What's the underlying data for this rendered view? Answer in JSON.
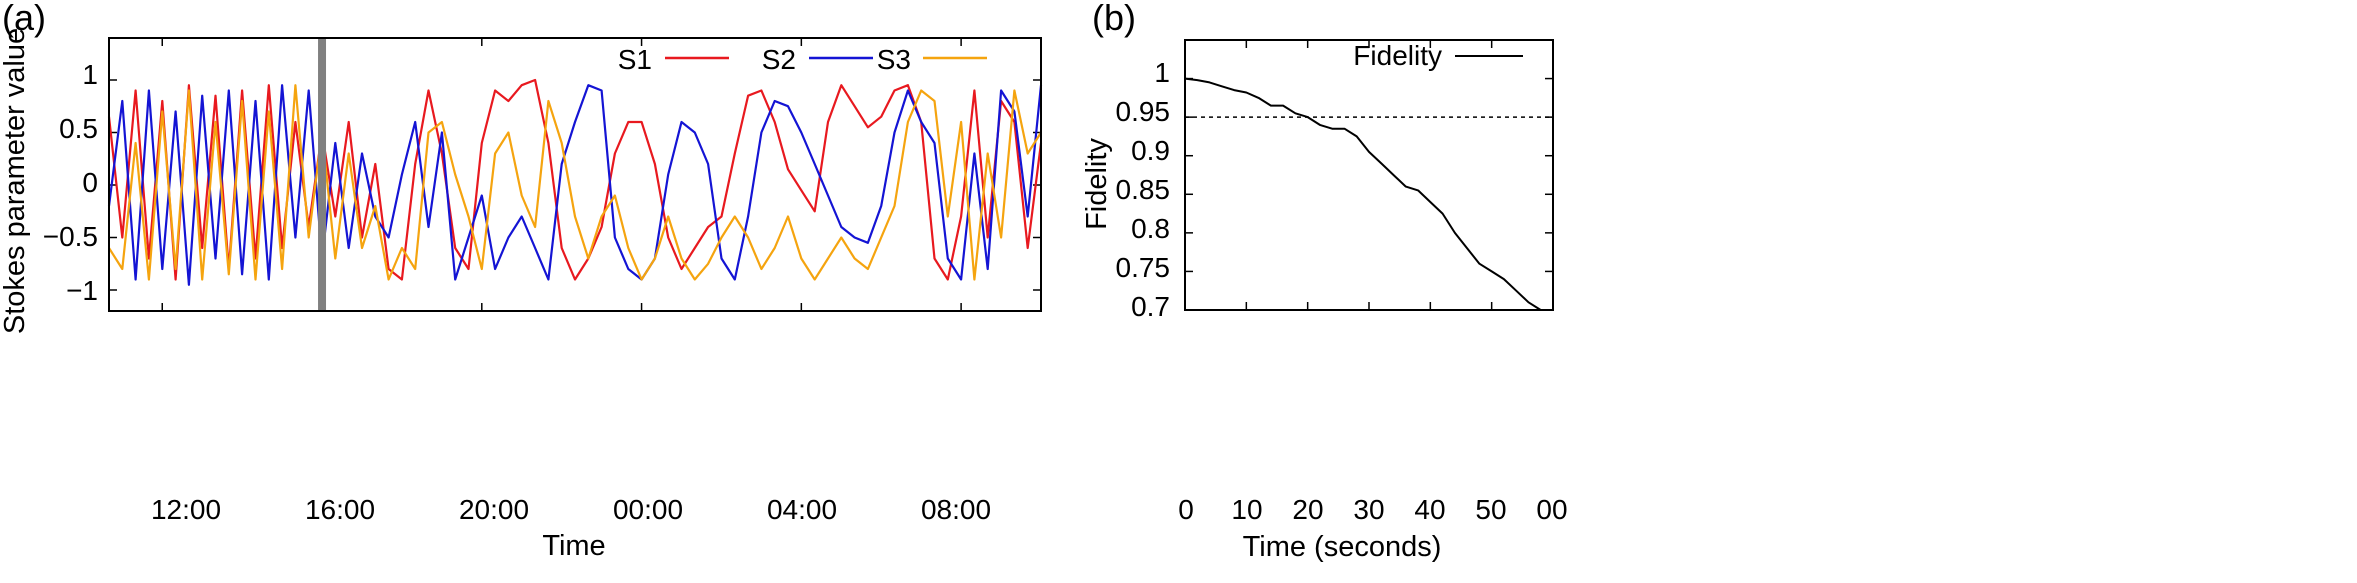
{
  "chart_data": [
    {
      "panel_label": "(a)",
      "type": "line",
      "title": "",
      "xlabel": "Time",
      "ylabel": "Stokes parameter value",
      "xlim": [
        "10:40",
        "10:00 (+1 day)"
      ],
      "ylim": [
        -1.2,
        1.4
      ],
      "x_ticks": [
        "12:00",
        "16:00",
        "20:00",
        "00:00",
        "04:00",
        "08:00"
      ],
      "y_ticks": [
        "1",
        "0.5",
        "0",
        "−0.5",
        "−1"
      ],
      "y_tick_values": [
        1,
        0.5,
        0,
        -0.5,
        -1
      ],
      "grid": false,
      "legend_position": "top-right",
      "marker_line": {
        "x": "16:00",
        "color": "#808080"
      },
      "sample_times": [
        "10:40",
        "11:00",
        "11:20",
        "11:40",
        "12:00",
        "12:20",
        "12:40",
        "13:00",
        "13:20",
        "13:40",
        "14:00",
        "14:20",
        "14:40",
        "15:00",
        "15:20",
        "15:40",
        "16:00",
        "16:20",
        "16:40",
        "17:00",
        "17:20",
        "17:40",
        "18:00",
        "18:20",
        "18:40",
        "19:00",
        "19:20",
        "19:40",
        "20:00",
        "20:20",
        "20:40",
        "21:00",
        "21:20",
        "21:40",
        "22:00",
        "22:20",
        "22:40",
        "23:00",
        "23:20",
        "23:40",
        "00:00",
        "00:20",
        "00:40",
        "01:00",
        "01:20",
        "01:40",
        "02:00",
        "02:20",
        "02:40",
        "03:00",
        "03:20",
        "03:40",
        "04:00",
        "04:20",
        "04:40",
        "05:00",
        "05:20",
        "05:40",
        "06:00",
        "06:20",
        "06:40",
        "07:00",
        "07:20",
        "07:40",
        "08:00",
        "08:20",
        "08:40",
        "09:00",
        "09:20",
        "09:40",
        "10:00"
      ],
      "series": [
        {
          "name": "S1",
          "color": "#e8191f",
          "values": [
            0.65,
            -0.5,
            0.9,
            -0.7,
            0.8,
            -0.9,
            0.95,
            -0.6,
            0.85,
            -0.8,
            0.9,
            -0.7,
            0.95,
            -0.6,
            0.6,
            -0.4,
            0.5,
            -0.3,
            0.6,
            -0.5,
            0.2,
            -0.8,
            -0.9,
            0.2,
            0.9,
            0.3,
            -0.6,
            -0.8,
            0.4,
            0.9,
            0.8,
            0.95,
            1.0,
            0.4,
            -0.6,
            -0.9,
            -0.7,
            -0.4,
            0.3,
            0.6,
            0.6,
            0.2,
            -0.5,
            -0.8,
            -0.6,
            -0.4,
            -0.3,
            0.3,
            0.85,
            0.9,
            0.6,
            0.15,
            -0.05,
            -0.25,
            0.6,
            0.95,
            0.75,
            0.55,
            0.65,
            0.9,
            0.95,
            0.6,
            -0.7,
            -0.9,
            -0.3,
            0.9,
            -0.5,
            0.8,
            0.6,
            -0.6,
            0.4
          ]
        },
        {
          "name": "S2",
          "color": "#1414d4",
          "values": [
            -0.2,
            0.8,
            -0.9,
            0.9,
            -0.8,
            0.7,
            -0.95,
            0.85,
            -0.7,
            0.9,
            -0.85,
            0.8,
            -0.9,
            0.95,
            -0.5,
            0.9,
            -0.7,
            0.4,
            -0.6,
            0.3,
            -0.3,
            -0.5,
            0.1,
            0.6,
            -0.4,
            0.5,
            -0.9,
            -0.5,
            -0.1,
            -0.8,
            -0.5,
            -0.3,
            -0.6,
            -0.9,
            0.2,
            0.6,
            0.95,
            0.9,
            -0.5,
            -0.8,
            -0.9,
            -0.7,
            0.1,
            0.6,
            0.5,
            0.2,
            -0.7,
            -0.9,
            -0.3,
            0.5,
            0.8,
            0.75,
            0.5,
            0.2,
            -0.1,
            -0.4,
            -0.5,
            -0.55,
            -0.2,
            0.5,
            0.9,
            0.6,
            0.4,
            -0.7,
            -0.9,
            0.3,
            -0.8,
            0.9,
            0.7,
            -0.3,
            0.95
          ]
        },
        {
          "name": "S3",
          "color": "#f5a40f",
          "values": [
            -0.6,
            -0.8,
            0.4,
            -0.9,
            0.7,
            -0.8,
            0.9,
            -0.9,
            0.6,
            -0.85,
            0.8,
            -0.9,
            0.7,
            -0.8,
            0.95,
            -0.5,
            0.5,
            -0.7,
            0.3,
            -0.6,
            -0.2,
            -0.9,
            -0.6,
            -0.8,
            0.5,
            0.6,
            0.1,
            -0.3,
            -0.8,
            0.3,
            0.5,
            -0.1,
            -0.4,
            0.8,
            0.4,
            -0.3,
            -0.7,
            -0.3,
            -0.1,
            -0.6,
            -0.9,
            -0.7,
            -0.3,
            -0.7,
            -0.9,
            -0.75,
            -0.5,
            -0.3,
            -0.5,
            -0.8,
            -0.6,
            -0.3,
            -0.7,
            -0.9,
            -0.7,
            -0.5,
            -0.7,
            -0.8,
            -0.5,
            -0.2,
            0.6,
            0.9,
            0.8,
            -0.3,
            0.6,
            -0.9,
            0.3,
            -0.5,
            0.9,
            0.3,
            0.5
          ]
        }
      ]
    },
    {
      "panel_label": "(b)",
      "type": "line",
      "title": "",
      "xlabel": "Time (seconds)",
      "ylabel": "Fidelity",
      "xlim": [
        0,
        60
      ],
      "ylim": [
        0.7,
        1.05
      ],
      "x_ticks": [
        "0",
        "10",
        "20",
        "30",
        "40",
        "50",
        "00"
      ],
      "x_tick_values": [
        0,
        10,
        20,
        30,
        40,
        50,
        60
      ],
      "y_ticks": [
        "1",
        "0.95",
        "0.9",
        "0.85",
        "0.8",
        "0.75",
        "0.7"
      ],
      "y_tick_values": [
        1,
        0.95,
        0.9,
        0.85,
        0.8,
        0.75,
        0.7
      ],
      "grid": false,
      "legend_position": "top-right",
      "threshold": 0.95,
      "series": [
        {
          "name": "Fidelity",
          "color": "#000000",
          "x": [
            0,
            2,
            4,
            6,
            8,
            10,
            12,
            14,
            16,
            18,
            20,
            22,
            24,
            26,
            28,
            30,
            32,
            34,
            36,
            38,
            40,
            42,
            44,
            46,
            48,
            50,
            52,
            54,
            56,
            58,
            60
          ],
          "y": [
            1.0,
            0.998,
            0.995,
            0.99,
            0.985,
            0.982,
            0.975,
            0.965,
            0.965,
            0.955,
            0.95,
            0.94,
            0.935,
            0.935,
            0.925,
            0.905,
            0.89,
            0.875,
            0.86,
            0.855,
            0.84,
            0.825,
            0.8,
            0.78,
            0.76,
            0.75,
            0.74,
            0.725,
            0.71,
            0.7,
            0.7
          ]
        }
      ]
    }
  ]
}
